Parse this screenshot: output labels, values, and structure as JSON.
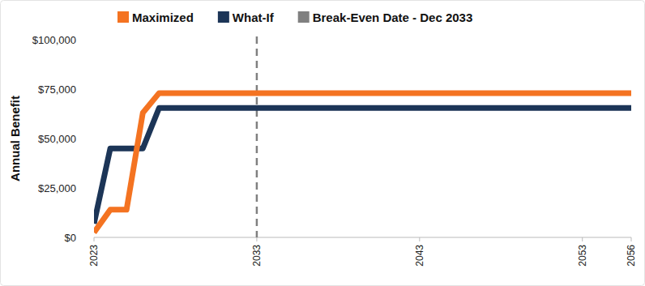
{
  "chart_data": {
    "type": "line",
    "y_label": "Annual Benefit",
    "x": [
      2023,
      2024,
      2025,
      2026,
      2027,
      2056
    ],
    "series": [
      {
        "name": "Maximized",
        "color": "#f47321",
        "values": [
          2500,
          14000,
          14000,
          63000,
          73000,
          73000
        ]
      },
      {
        "name": "What-If",
        "color": "#1c3557",
        "values": [
          7000,
          45000,
          45000,
          45000,
          65500,
          65500
        ]
      }
    ],
    "annotations": [
      {
        "x": 2033,
        "text": "Break-Even Date - Dec 2033",
        "color": "#808080",
        "line_style": "dashed"
      }
    ],
    "xlim": [
      2023,
      2056
    ],
    "xticks": [
      2023,
      2033,
      2043,
      2053,
      2056
    ],
    "ylim": [
      0,
      100000
    ],
    "yticks": [
      {
        "value": 0,
        "label": "$0"
      },
      {
        "value": 25000,
        "label": "$25,000"
      },
      {
        "value": 50000,
        "label": "$50,000"
      },
      {
        "value": 75000,
        "label": "$75,000"
      },
      {
        "value": 100000,
        "label": "$100,000"
      }
    ],
    "grid": false,
    "legend": "top"
  }
}
